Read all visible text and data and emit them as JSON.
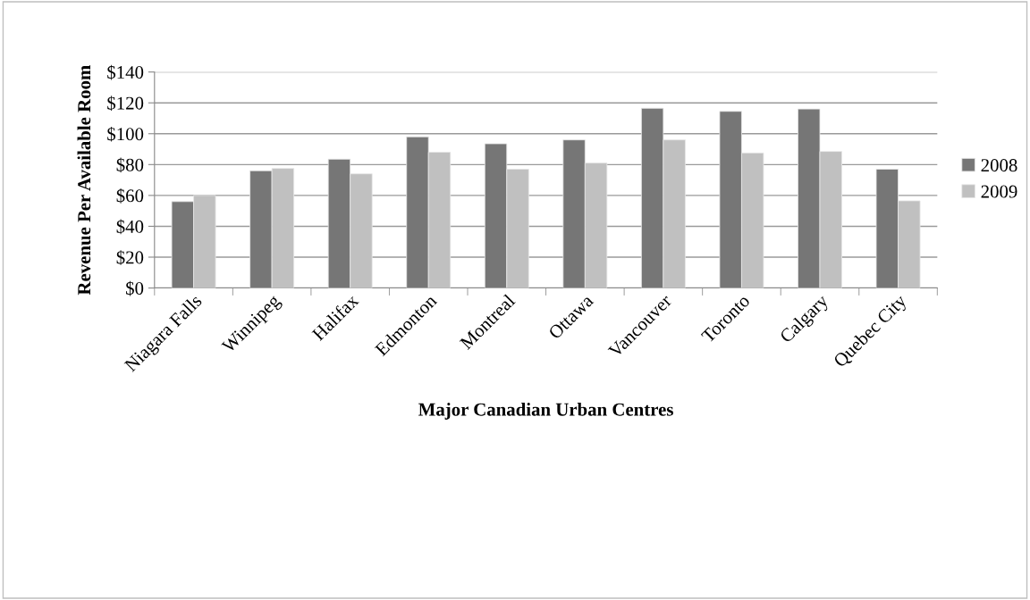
{
  "chart_data": {
    "type": "bar",
    "xlabel": "Major Canadian Urban Centres",
    "ylabel": "Revenue Per Available Room",
    "categories": [
      "Niagara Falls",
      "Winnipeg",
      "Halifax",
      "Edmonton",
      "Montreal",
      "Ottawa",
      "Vancouver",
      "Toronto",
      "Calgary",
      "Quebec City"
    ],
    "series": [
      {
        "name": "2008",
        "color": "#767676",
        "values": [
          56,
          76,
          83.5,
          98,
          93.5,
          96,
          116.5,
          114.5,
          116,
          77
        ]
      },
      {
        "name": "2009",
        "color": "#c0c0c0",
        "values": [
          60,
          77.5,
          74,
          88,
          77,
          81,
          96,
          87.5,
          88.5,
          56.5
        ]
      }
    ],
    "ylim": [
      0,
      140
    ],
    "yticks": [
      {
        "value": 0,
        "label": "$0"
      },
      {
        "value": 20,
        "label": "$20"
      },
      {
        "value": 40,
        "label": "$40"
      },
      {
        "value": 60,
        "label": "$60"
      },
      {
        "value": 80,
        "label": "$80"
      },
      {
        "value": 100,
        "label": "$100"
      },
      {
        "value": 120,
        "label": "$120"
      },
      {
        "value": 140,
        "label": "$140"
      }
    ],
    "grid": "y",
    "legend": "right"
  }
}
